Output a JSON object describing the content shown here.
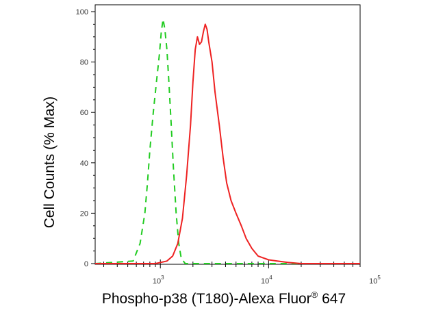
{
  "chart_data": {
    "type": "line",
    "xlabel": "Phospho-p38 (T180)-Alexa Fluor",
    "xlabel_sup": "®",
    "xlabel_suffix": " 647",
    "ylabel": "Cell Counts (% Max)",
    "x_scale": "log",
    "xlim": [
      250,
      70000
    ],
    "ylim": [
      0,
      100
    ],
    "y_ticks": [
      {
        "value": 0,
        "label": "0"
      },
      {
        "value": 20,
        "label": "20"
      },
      {
        "value": 40,
        "label": "40"
      },
      {
        "value": 60,
        "label": "60"
      },
      {
        "value": 80,
        "label": "80"
      },
      {
        "value": 100,
        "label": "100"
      }
    ],
    "x_ticks": [
      {
        "value": 1000,
        "base": "10",
        "exp": "3"
      },
      {
        "value": 10000,
        "base": "10",
        "exp": "4"
      },
      {
        "value": 100000,
        "base": "10",
        "exp": "5"
      }
    ],
    "grid": false,
    "legend": "none",
    "series": [
      {
        "color": "#22cc22",
        "style": "dashed",
        "x": [
          250,
          560,
          650,
          720,
          760,
          800,
          860,
          920,
          980,
          1020,
          1060,
          1100,
          1150,
          1200,
          1260,
          1320,
          1400,
          1480,
          1560,
          1700,
          2000,
          70000
        ],
        "y": [
          0,
          1,
          8,
          20,
          32,
          45,
          60,
          72,
          83,
          92,
          97,
          93,
          85,
          72,
          55,
          38,
          20,
          8,
          2,
          0,
          0,
          0
        ]
      },
      {
        "color": "#ee2222",
        "style": "solid",
        "x": [
          250,
          900,
          1150,
          1300,
          1450,
          1600,
          1750,
          1900,
          2000,
          2100,
          2200,
          2300,
          2400,
          2500,
          2600,
          2700,
          2800,
          3000,
          3200,
          3500,
          3800,
          4100,
          4500,
          5000,
          5600,
          6200,
          7000,
          8000,
          10000,
          12000,
          15000,
          20000,
          70000
        ],
        "y": [
          0,
          0,
          1,
          3,
          8,
          18,
          35,
          55,
          72,
          85,
          90,
          87,
          88,
          92,
          95,
          93,
          88,
          80,
          68,
          55,
          42,
          32,
          25,
          20,
          15,
          10,
          6,
          3,
          1.5,
          1,
          0.5,
          0,
          0
        ]
      }
    ]
  }
}
